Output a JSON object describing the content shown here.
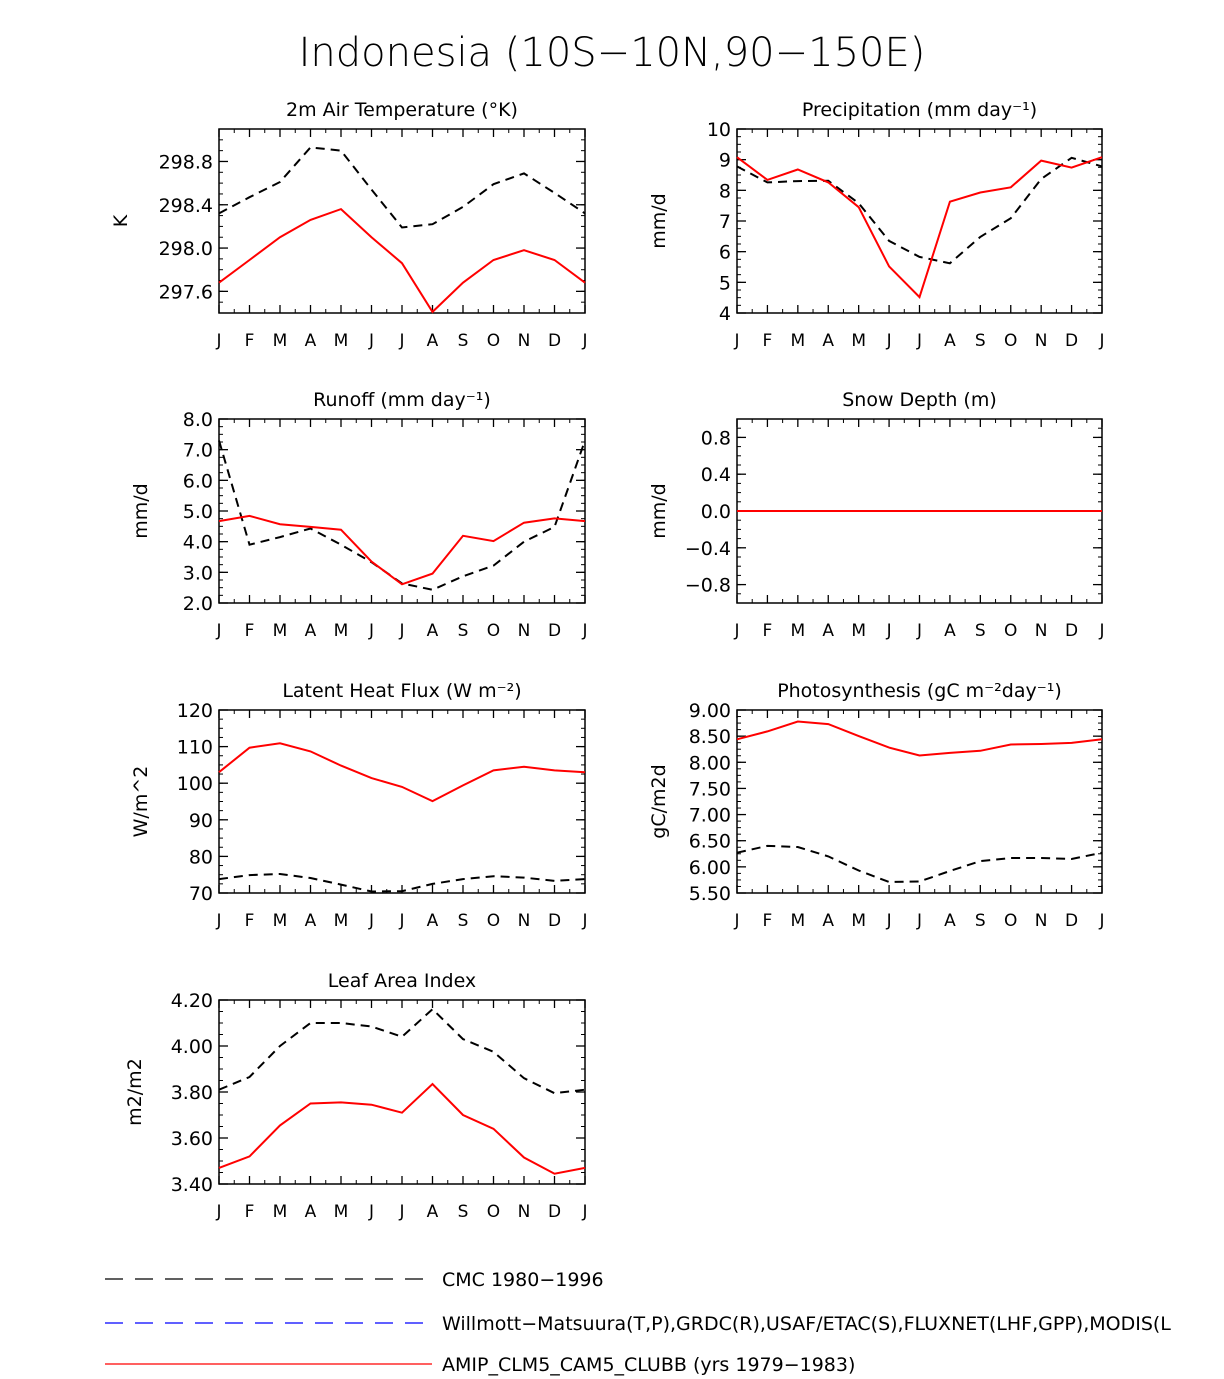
{
  "figure_title": "Indonesia (10S−10N,90−150E)",
  "month_labels": [
    "J",
    "F",
    "M",
    "A",
    "M",
    "J",
    "J",
    "A",
    "S",
    "O",
    "N",
    "D",
    "J"
  ],
  "colors": {
    "model": "#ff0000",
    "obs_cmc": "#000000",
    "obs_other": "#0000ff",
    "axis": "#000000"
  },
  "legend": [
    {
      "label": "CMC 1980−1996",
      "color": "#000000",
      "style": "dashed"
    },
    {
      "label": "Willmott−Matsuura(T,P),GRDC(R),USAF/ETAC(S),FLUXNET(LHF,GPP),MODIS(L",
      "color": "#0000ff",
      "style": "dashed"
    },
    {
      "label": "AMIP_CLM5_CAM5_CLUBB (yrs 1979−1983)",
      "color": "#ff0000",
      "style": "solid"
    }
  ],
  "chart_data": [
    {
      "id": "temp",
      "type": "line",
      "title": "2m Air Temperature (°K)",
      "ylabel": "K",
      "ylim": [
        297.4,
        299.1
      ],
      "yticks": [
        297.6,
        298.0,
        298.4,
        298.8
      ],
      "ytick_labels": [
        "297.6",
        "298.0",
        "298.4",
        "298.8"
      ],
      "series": [
        {
          "name": "CMC 1980−1996",
          "style": "dashed",
          "color": "#000000",
          "values": [
            298.32,
            298.47,
            298.61,
            298.93,
            298.9,
            298.54,
            298.19,
            298.22,
            298.38,
            298.59,
            298.69,
            298.51,
            298.32
          ]
        },
        {
          "name": "AMIP_CLM5_CAM5_CLUBB (yrs 1979−1983)",
          "style": "solid",
          "color": "#ff0000",
          "values": [
            297.68,
            297.89,
            298.1,
            298.26,
            298.36,
            298.1,
            297.86,
            297.41,
            297.68,
            297.89,
            297.98,
            297.89,
            297.68
          ]
        }
      ]
    },
    {
      "id": "precip",
      "type": "line",
      "title": "Precipitation (mm day⁻¹)",
      "ylabel": "mm/d",
      "ylim": [
        4,
        10
      ],
      "yticks": [
        4,
        5,
        6,
        7,
        8,
        9,
        10
      ],
      "ytick_labels": [
        "4",
        "5",
        "6",
        "7",
        "8",
        "9",
        "10"
      ],
      "series": [
        {
          "name": "CMC 1980−1996",
          "style": "dashed",
          "color": "#000000",
          "values": [
            8.78,
            8.26,
            8.3,
            8.31,
            7.58,
            6.35,
            5.83,
            5.62,
            6.48,
            7.09,
            8.37,
            9.06,
            8.78
          ]
        },
        {
          "name": "AMIP_CLM5_CAM5_CLUBB (yrs 1979−1983)",
          "style": "solid",
          "color": "#ff0000",
          "values": [
            9.08,
            8.34,
            8.68,
            8.26,
            7.45,
            5.52,
            4.52,
            7.63,
            7.93,
            8.1,
            8.97,
            8.74,
            9.08
          ]
        }
      ]
    },
    {
      "id": "runoff",
      "type": "line",
      "title": "Runoff (mm day⁻¹)",
      "ylabel": "mm/d",
      "ylim": [
        2.0,
        8.0
      ],
      "yticks": [
        2,
        3,
        4,
        5,
        6,
        7,
        8
      ],
      "ytick_labels": [
        "2.0",
        "3.0",
        "4.0",
        "5.0",
        "6.0",
        "7.0",
        "8.0"
      ],
      "series": [
        {
          "name": "CMC 1980−1996",
          "style": "dashed",
          "color": "#000000",
          "values": [
            7.3,
            3.9,
            4.15,
            4.43,
            3.9,
            3.33,
            2.64,
            2.43,
            2.87,
            3.22,
            4.0,
            4.48,
            7.3
          ]
        },
        {
          "name": "AMIP_CLM5_CAM5_CLUBB (yrs 1979−1983)",
          "style": "solid",
          "color": "#ff0000",
          "values": [
            4.67,
            4.84,
            4.57,
            4.48,
            4.39,
            3.35,
            2.61,
            2.96,
            4.19,
            4.02,
            4.62,
            4.76,
            4.67
          ]
        }
      ]
    },
    {
      "id": "snow",
      "type": "line",
      "title": "Snow Depth (m)",
      "ylabel": "mm/d",
      "ylim": [
        -1.0,
        1.0
      ],
      "yticks": [
        -0.8,
        -0.4,
        0.0,
        0.4,
        0.8
      ],
      "ytick_labels": [
        "−0.8",
        "−0.4",
        "0.0",
        "0.4",
        "0.8"
      ],
      "series": [
        {
          "name": "CMC 1980−1996",
          "style": "dashed",
          "color": "#000000",
          "values": [
            0,
            0,
            0,
            0,
            0,
            0,
            0,
            0,
            0,
            0,
            0,
            0,
            0
          ]
        },
        {
          "name": "AMIP_CLM5_CAM5_CLUBB (yrs 1979−1983)",
          "style": "solid",
          "color": "#ff0000",
          "values": [
            0,
            0,
            0,
            0,
            0,
            0,
            0,
            0,
            0,
            0,
            0,
            0,
            0
          ]
        }
      ]
    },
    {
      "id": "lhf",
      "type": "line",
      "title": "Latent Heat Flux (W m⁻²)",
      "ylabel": "W/m^2",
      "ylim": [
        70,
        120
      ],
      "yticks": [
        70,
        80,
        90,
        100,
        110,
        120
      ],
      "ytick_labels": [
        "70",
        "80",
        "90",
        "100",
        "110",
        "120"
      ],
      "series": [
        {
          "name": "CMC 1980−1996",
          "style": "dashed",
          "color": "#000000",
          "values": [
            73.8,
            74.9,
            75.2,
            74.1,
            72.3,
            70.4,
            70.5,
            72.5,
            73.8,
            74.6,
            74.2,
            73.3,
            73.8
          ]
        },
        {
          "name": "AMIP_CLM5_CAM5_CLUBB (yrs 1979−1983)",
          "style": "solid",
          "color": "#ff0000",
          "values": [
            103.0,
            109.7,
            110.9,
            108.7,
            104.8,
            101.4,
            99.0,
            95.1,
            99.4,
            103.5,
            104.5,
            103.5,
            103.0
          ]
        }
      ]
    },
    {
      "id": "gpp",
      "type": "line",
      "title": "Photosynthesis (gC m⁻²day⁻¹)",
      "ylabel": "gC/m2d",
      "ylim": [
        5.5,
        9.0
      ],
      "yticks": [
        5.5,
        6.0,
        6.5,
        7.0,
        7.5,
        8.0,
        8.5,
        9.0
      ],
      "ytick_labels": [
        "5.50",
        "6.00",
        "6.50",
        "7.00",
        "7.50",
        "8.00",
        "8.50",
        "9.00"
      ],
      "series": [
        {
          "name": "CMC 1980−1996",
          "style": "dashed",
          "color": "#000000",
          "values": [
            6.27,
            6.4,
            6.38,
            6.2,
            5.93,
            5.71,
            5.72,
            5.92,
            6.11,
            6.17,
            6.17,
            6.15,
            6.27
          ]
        },
        {
          "name": "AMIP_CLM5_CAM5_CLUBB (yrs 1979−1983)",
          "style": "solid",
          "color": "#ff0000",
          "values": [
            8.44,
            8.59,
            8.78,
            8.73,
            8.5,
            8.28,
            8.13,
            8.18,
            8.22,
            8.34,
            8.35,
            8.37,
            8.44
          ]
        }
      ]
    },
    {
      "id": "lai",
      "type": "line",
      "title": "Leaf Area Index",
      "ylabel": "m2/m2",
      "ylim": [
        3.4,
        4.2
      ],
      "yticks": [
        3.4,
        3.6,
        3.8,
        4.0,
        4.2
      ],
      "ytick_labels": [
        "3.40",
        "3.60",
        "3.80",
        "4.00",
        "4.20"
      ],
      "series": [
        {
          "name": "CMC 1980−1996",
          "style": "dashed",
          "color": "#000000",
          "values": [
            3.81,
            3.865,
            4.0,
            4.1,
            4.1,
            4.085,
            4.04,
            4.16,
            4.03,
            3.975,
            3.86,
            3.795,
            3.81
          ]
        },
        {
          "name": "AMIP_CLM5_CAM5_CLUBB (yrs 1979−1983)",
          "style": "solid",
          "color": "#ff0000",
          "values": [
            3.47,
            3.52,
            3.655,
            3.75,
            3.755,
            3.745,
            3.71,
            3.835,
            3.7,
            3.64,
            3.515,
            3.445,
            3.47
          ]
        }
      ]
    }
  ]
}
